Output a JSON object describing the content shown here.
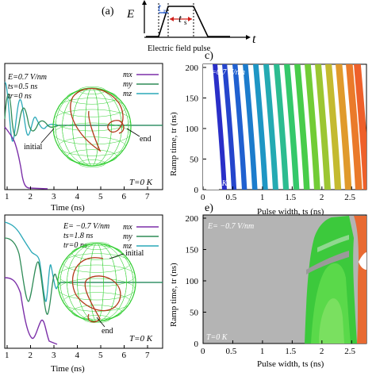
{
  "panel_a": {
    "label": "(a)",
    "y_symbol": "E",
    "x_symbol": "t",
    "tr_label": "t",
    "tr_sub": "r",
    "ts_label": "t",
    "ts_sub": "s",
    "caption": "Electric field pulse"
  },
  "panel_b": {
    "params": [
      "E=0.7 V/nm",
      "ts=0.5 ns",
      "tr=0 ns"
    ],
    "legend": [
      "mx",
      "my",
      "mz"
    ],
    "xlabel": "Time (ns)",
    "xticks": [
      "1",
      "2",
      "3",
      "4",
      "5",
      "6",
      "7"
    ],
    "sphere_labels": {
      "initial": "initial",
      "end": "end"
    },
    "temperature": "T=0 K"
  },
  "panel_c": {
    "label": "c)",
    "field_label": "E=0.7 V/nm",
    "temperature": "T=0 K",
    "xlabel": "Pulse width, ts (ns)",
    "ylabel": "Ramp time, tr (ns)",
    "xticks": [
      "0",
      "0.5",
      "1",
      "1.5",
      "2",
      "2.5"
    ],
    "yticks": [
      "0",
      "50",
      "100",
      "150",
      "200"
    ]
  },
  "panel_d": {
    "params": [
      "E= −0.7 V/nm",
      "ts=1.8 ns",
      "tr=0 ns"
    ],
    "legend": [
      "mx",
      "my",
      "mz"
    ],
    "xlabel": "Time (ns)",
    "xticks": [
      "1",
      "2",
      "3",
      "4",
      "5",
      "6",
      "7"
    ],
    "sphere_labels": {
      "initial": "initial",
      "end": "end"
    },
    "temperature": "T=0 K"
  },
  "panel_e": {
    "label": "e)",
    "field_label": "E= −0.7 V/nm",
    "temperature": "T=0 K",
    "xlabel": "Pulse width, ts (ns)",
    "ylabel": "Ramp time, tr (ns)",
    "xticks": [
      "0",
      "0.5",
      "1",
      "1.5",
      "2",
      "2.5"
    ],
    "yticks": [
      "0",
      "50",
      "100",
      "150",
      "200"
    ]
  },
  "colors": {
    "mx": "#7b2fa8",
    "my": "#2e8b57",
    "mz": "#2aa8b8"
  }
}
